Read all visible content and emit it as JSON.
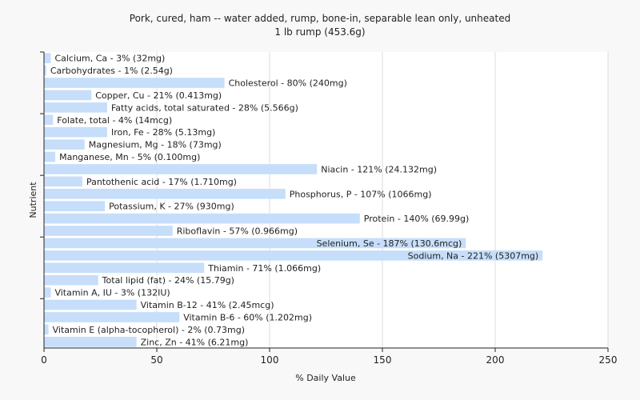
{
  "chart_data": {
    "type": "bar",
    "orientation": "horizontal",
    "title": "Pork, cured, ham -- water added, rump, bone-in, separable lean only, unheated",
    "subtitle": "1 lb rump (453.6g)",
    "xlabel": "% Daily Value",
    "ylabel": "Nutrient",
    "xlim": [
      0,
      250
    ],
    "xticks": [
      0,
      50,
      100,
      150,
      200,
      250
    ],
    "grid": true,
    "bar_color": "#c6defa",
    "categories": [
      "Calcium, Ca",
      "Carbohydrates",
      "Cholesterol",
      "Copper, Cu",
      "Fatty acids, total saturated",
      "Folate, total",
      "Iron, Fe",
      "Magnesium, Mg",
      "Manganese, Mn",
      "Niacin",
      "Pantothenic acid",
      "Phosphorus, P",
      "Potassium, K",
      "Protein",
      "Riboflavin",
      "Selenium, Se",
      "Sodium, Na",
      "Thiamin",
      "Total lipid (fat)",
      "Vitamin A, IU",
      "Vitamin B-12",
      "Vitamin B-6",
      "Vitamin E (alpha-tocopherol)",
      "Zinc, Zn"
    ],
    "values": [
      3,
      1,
      80,
      21,
      28,
      4,
      28,
      18,
      5,
      121,
      17,
      107,
      27,
      140,
      57,
      187,
      221,
      71,
      24,
      3,
      41,
      60,
      2,
      41
    ],
    "labels": [
      "Calcium, Ca - 3% (32mg)",
      "Carbohydrates - 1% (2.54g)",
      "Cholesterol - 80% (240mg)",
      "Copper, Cu - 21% (0.413mg)",
      "Fatty acids, total saturated - 28% (5.566g)",
      "Folate, total - 4% (14mcg)",
      "Iron, Fe - 28% (5.13mg)",
      "Magnesium, Mg - 18% (73mg)",
      "Manganese, Mn - 5% (0.100mg)",
      "Niacin - 121% (24.132mg)",
      "Pantothenic acid - 17% (1.710mg)",
      "Phosphorus, P - 107% (1066mg)",
      "Potassium, K - 27% (930mg)",
      "Protein - 140% (69.99g)",
      "Riboflavin - 57% (0.966mg)",
      "Selenium, Se - 187% (130.6mcg)",
      "Sodium, Na - 221% (5307mg)",
      "Thiamin - 71% (1.066mg)",
      "Total lipid (fat) - 24% (15.79g)",
      "Vitamin A, IU - 3% (132IU)",
      "Vitamin B-12 - 41% (2.45mcg)",
      "Vitamin B-6 - 60% (1.202mg)",
      "Vitamin E (alpha-tocopherol) - 2% (0.73mg)",
      "Zinc, Zn - 41% (6.21mg)"
    ]
  }
}
